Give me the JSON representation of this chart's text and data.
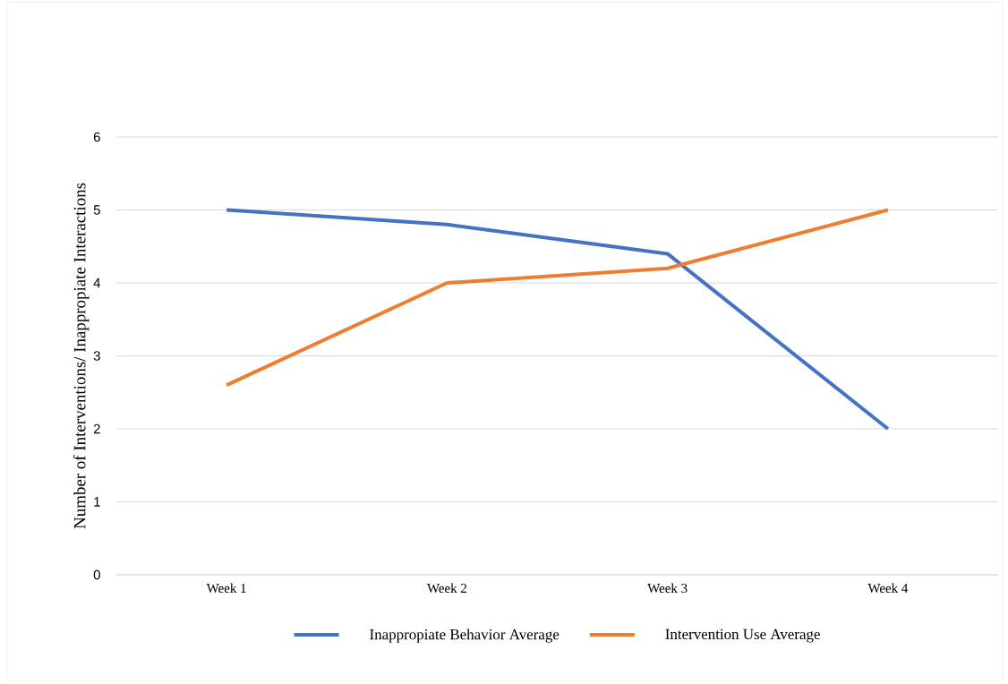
{
  "chart_data": {
    "type": "line",
    "ylabel": "Number of Interventions/ Inappropiate Interactions",
    "categories": [
      "Week 1",
      "Week 2",
      "Week 3",
      "Week 4"
    ],
    "series": [
      {
        "name": "Inappropiate Behavior Average",
        "color": "#4472c4",
        "values": [
          5,
          4.8,
          4.4,
          2
        ]
      },
      {
        "name": "Intervention Use Average",
        "color": "#ed7d31",
        "values": [
          2.6,
          4,
          4.2,
          5
        ]
      }
    ],
    "ylim": [
      0,
      6
    ],
    "yticks": [
      0,
      1,
      2,
      3,
      4,
      5,
      6
    ],
    "grid": "y",
    "legend": "bottom"
  }
}
